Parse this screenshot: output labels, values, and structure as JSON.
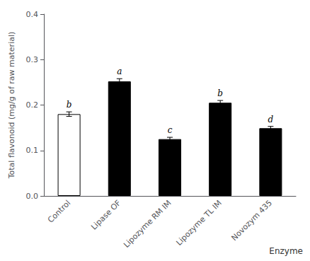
{
  "chart_data": {
    "type": "bar",
    "categories": [
      "Control",
      "Lipase OF",
      "Lipozyme RM IM",
      "Lipozyme TL IM",
      "Novozym 435"
    ],
    "values": [
      0.18,
      0.252,
      0.125,
      0.205,
      0.149
    ],
    "errors": [
      0.005,
      0.006,
      0.004,
      0.005,
      0.004
    ],
    "colors": [
      "white",
      "black",
      "black",
      "black",
      "black"
    ],
    "annotations": [
      "b",
      "a",
      "c",
      "b",
      "d"
    ],
    "ylabel": "Total flavonoid (mg/g of raw material)",
    "xlabel": "Enzyme",
    "ylim": [
      0.0,
      0.4
    ],
    "yticks": [
      {
        "value": 0.0,
        "label": "0.0"
      },
      0.1,
      0.2,
      0.3,
      0.4
    ],
    "grid": false
  }
}
